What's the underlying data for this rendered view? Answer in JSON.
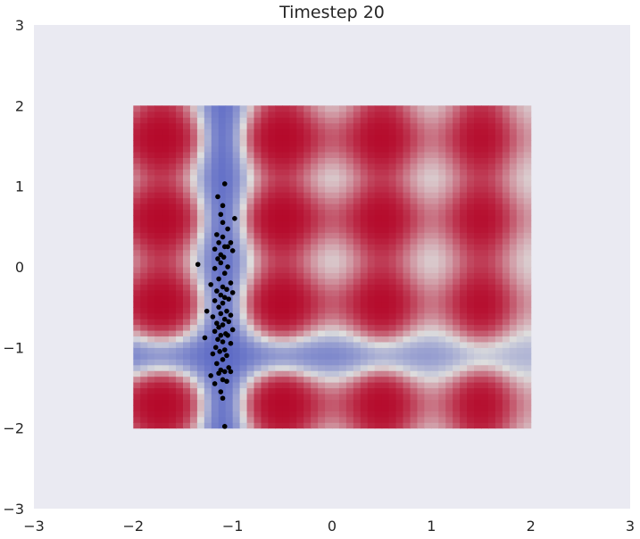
{
  "chart_data": {
    "type": "scatter",
    "title": "Timestep 20",
    "xlabel": "",
    "ylabel": "",
    "xlim": [
      -3,
      3
    ],
    "ylim": [
      -3,
      3
    ],
    "grid": false,
    "background_color": "#eaeaf2",
    "x_ticks": [
      -3,
      -2,
      -1,
      0,
      1,
      2,
      3
    ],
    "y_ticks": [
      -3,
      -2,
      -1,
      0,
      1,
      2,
      3
    ],
    "x_tick_labels": [
      "−3",
      "−2",
      "−1",
      "0",
      "1",
      "2",
      "3"
    ],
    "y_tick_labels": [
      "−3",
      "−2",
      "−1",
      "0",
      "1",
      "2",
      "3"
    ],
    "heatmap": {
      "extent_x": [
        -2,
        2
      ],
      "extent_y": [
        -2,
        2
      ],
      "colormap": "coolwarm",
      "colormap_endpoints": {
        "low": "#3b4cc0",
        "mid": "#dddddd",
        "high": "#b40426"
      },
      "x_peak_centers": [
        -1.72,
        -0.5,
        0.5,
        1.5
      ],
      "x_trough_centers": [
        -1.1
      ],
      "y_peak_centers": [
        1.6,
        0.6,
        -0.45,
        -1.7
      ],
      "y_trough_centers": [
        -1.1
      ]
    },
    "points": {
      "color": "#000000",
      "x": [
        -1.08,
        -1.15,
        -1.1,
        -0.98,
        -1.12,
        -1.1,
        -1.05,
        -1.16,
        -1.1,
        -1.02,
        -1.14,
        -1.08,
        -1.18,
        -1.05,
        -1.12,
        -1.0,
        -1.15,
        -1.09,
        -1.35,
        -1.12,
        -1.05,
        -1.18,
        -1.08,
        -1.14,
        -1.02,
        -1.22,
        -1.1,
        -1.06,
        -1.16,
        -1.0,
        -1.12,
        -1.08,
        -1.04,
        -1.18,
        -1.1,
        -1.26,
        -1.14,
        -1.06,
        -1.12,
        -1.02,
        -1.2,
        -1.08,
        -1.16,
        -1.04,
        -1.1,
        -1.14,
        -1.0,
        -1.18,
        -1.07,
        -1.12,
        -1.28,
        -1.05,
        -1.15,
        -1.1,
        -1.02,
        -1.17,
        -1.08,
        -1.13,
        -1.2,
        -1.06,
        -1.1,
        -1.16,
        -1.04,
        -1.12,
        -1.08,
        -1.22,
        -1.14,
        -1.02,
        -1.1,
        -1.18,
        -1.06,
        -1.12,
        -1.1,
        -1.08
      ],
      "y": [
        1.03,
        0.87,
        0.76,
        0.6,
        0.65,
        0.55,
        0.47,
        0.4,
        0.37,
        0.3,
        0.3,
        0.25,
        0.22,
        0.25,
        0.15,
        0.2,
        0.1,
        0.12,
        0.03,
        0.05,
        0.0,
        -0.02,
        -0.08,
        -0.15,
        -0.2,
        -0.22,
        -0.25,
        -0.28,
        -0.3,
        -0.32,
        -0.35,
        -0.38,
        -0.4,
        -0.42,
        -0.45,
        -0.55,
        -0.5,
        -0.55,
        -0.58,
        -0.6,
        -0.62,
        -0.65,
        -0.7,
        -0.68,
        -0.72,
        -0.75,
        -0.78,
        -0.8,
        -0.83,
        -0.85,
        -0.88,
        -0.85,
        -0.9,
        -0.93,
        -0.95,
        -1.0,
        -1.03,
        -1.05,
        -1.08,
        -1.1,
        -1.15,
        -1.2,
        -1.25,
        -1.28,
        -1.3,
        -1.35,
        -1.32,
        -1.3,
        -1.4,
        -1.45,
        -1.42,
        -1.55,
        -1.63,
        -1.98
      ]
    }
  }
}
